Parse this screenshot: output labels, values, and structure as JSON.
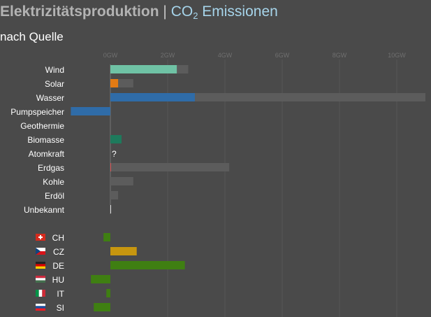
{
  "header": {
    "title_part1": "Elektrizitätsproduktion",
    "separator": "|",
    "title_co2": "CO",
    "title_co2_sub": "2",
    "title_part2": "Emissionen",
    "subtitle": "nach Quelle"
  },
  "colors": {
    "background": "#4a4a4a",
    "capacity": "#5c5c5c",
    "grid": "#575757",
    "tick_label": "#6f6f6f",
    "label": "#ffffff",
    "zero_line": "#c2c2c2"
  },
  "chart_data": [
    {
      "type": "bar",
      "orientation": "horizontal",
      "unit": "GW",
      "xlim": [
        -1.38,
        11.0
      ],
      "ticks": [
        0,
        2,
        4,
        6,
        8,
        10
      ],
      "tick_labels": [
        "0GW",
        "2GW",
        "4GW",
        "6GW",
        "8GW",
        "10GW"
      ],
      "grid": true,
      "categories": [
        "Wind",
        "Solar",
        "Wasser",
        "Pumpspeicher",
        "Geothermie",
        "Biomasse",
        "Atomkraft",
        "Erdgas",
        "Kohle",
        "Erdöl",
        "Unbekannt"
      ],
      "series": [
        {
          "values": [
            2.32,
            0.27,
            2.95,
            -1.38,
            0,
            0.39,
            null,
            0.02,
            0,
            0,
            0.02
          ],
          "colors": [
            "#6fc2a5",
            "#e37b14",
            "#2f6ca8",
            "#2f6ca8",
            "#6fc2a5",
            "#1e7a5c",
            "#999999",
            "#d65050",
            "#777777",
            "#777777",
            "#dddddd"
          ]
        },
        {
          "values": [
            2.72,
            0.8,
            11.0,
            0,
            0,
            0.39,
            0,
            4.15,
            0.8,
            0.27,
            0
          ]
        }
      ],
      "annotations": [
        {
          "category": "Atomkraft",
          "text": "?"
        }
      ]
    },
    {
      "type": "bar",
      "orientation": "horizontal",
      "unit": "GW",
      "categories": [
        "CH",
        "CZ",
        "DE",
        "HU",
        "IT",
        "SI"
      ],
      "values": [
        -0.24,
        0.92,
        2.6,
        -0.68,
        -0.14,
        -0.58
      ],
      "colors": [
        "#3f7f12",
        "#c7960f",
        "#3f7f12",
        "#3f7f12",
        "#3f7f12",
        "#3f7f12"
      ],
      "flag_colors": {
        "CH": [
          "#d52b1e"
        ],
        "CZ": [
          "#ffffff",
          "#d7141a",
          "#11457e"
        ],
        "DE": [
          "#222222",
          "#dd0000",
          "#ffce00"
        ],
        "HU": [
          "#cd2a3e",
          "#ffffff",
          "#436f4d"
        ],
        "IT": [
          "#009246",
          "#ffffff",
          "#ce2b37"
        ],
        "SI": [
          "#ffffff",
          "#1a4fa0",
          "#ed1c24"
        ]
      }
    }
  ]
}
